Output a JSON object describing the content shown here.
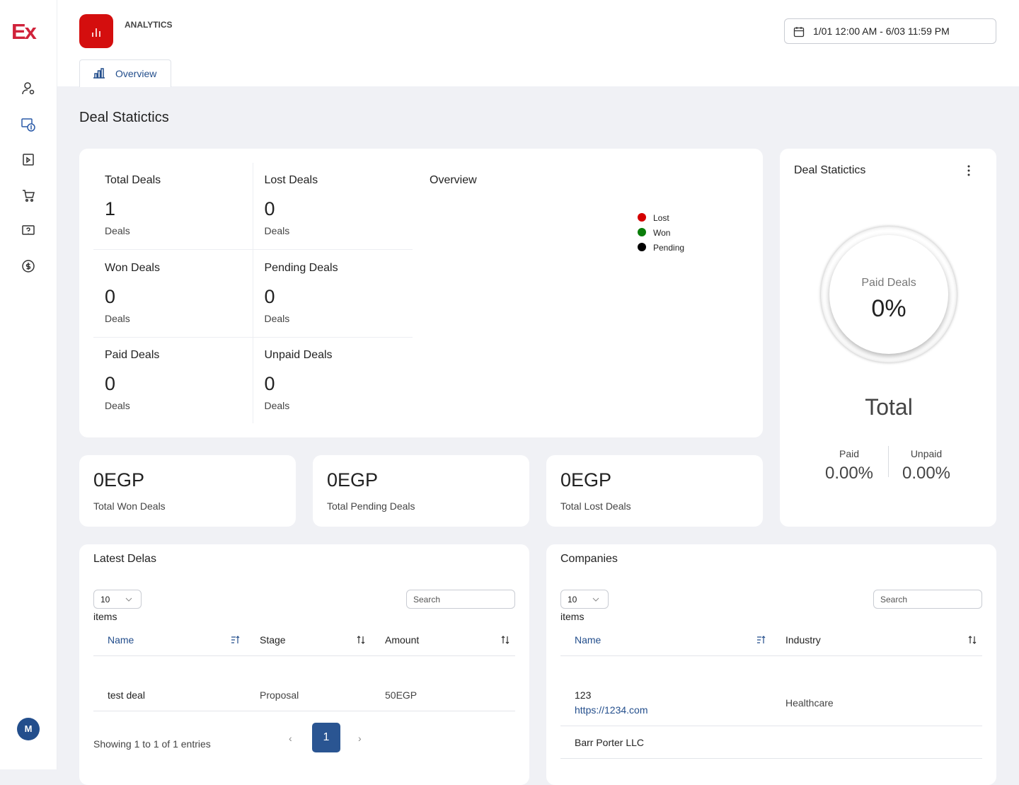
{
  "brand": "Ex",
  "user_initial": "M",
  "header": {
    "section": "ANALYTICS",
    "tab": "Overview",
    "date_range": "1/01 12:00 AM - 6/03 11:59 PM"
  },
  "page_title": "Deal Statictics",
  "stats": [
    {
      "label": "Total Deals",
      "value": 1,
      "unit": "Deals"
    },
    {
      "label": "Lost Deals",
      "value": 0,
      "unit": "Deals"
    },
    {
      "label": "Won Deals",
      "value": 0,
      "unit": "Deals"
    },
    {
      "label": "Pending Deals",
      "value": 0,
      "unit": "Deals"
    },
    {
      "label": "Paid Deals",
      "value": 0,
      "unit": "Deals"
    },
    {
      "label": "Unpaid Deals",
      "value": 0,
      "unit": "Deals"
    }
  ],
  "overview": {
    "title": "Overview",
    "legend": [
      {
        "name": "Lost",
        "color": "#d40000"
      },
      {
        "name": "Won",
        "color": "#0a7d0a"
      },
      {
        "name": "Pending",
        "color": "#000000"
      }
    ]
  },
  "totals": [
    {
      "value": "0EGP",
      "label": "Total Won Deals"
    },
    {
      "value": "0EGP",
      "label": "Total Pending Deals"
    },
    {
      "value": "0EGP",
      "label": "Total Lost Deals"
    }
  ],
  "paid_card": {
    "title": "Deal Statictics",
    "center_label": "Paid Deals",
    "center_value": "0%",
    "total": "Total",
    "paid_label": "Paid",
    "paid_value": "0.00%",
    "unpaid_label": "Unpaid",
    "unpaid_value": "0.00%"
  },
  "latest": {
    "title": "Latest Delas",
    "page_size": "10",
    "items": "items",
    "search": "Search",
    "columns": [
      "Name",
      "Stage",
      "Amount"
    ],
    "rows": [
      [
        "test deal",
        "Proposal",
        "50EGP"
      ]
    ],
    "footer": "Showing 1 to 1 of 1 entries",
    "page": "1"
  },
  "companies": {
    "title": "Companies",
    "page_size": "10",
    "items": "items",
    "search": "Search",
    "columns": [
      "Name",
      "Industry"
    ],
    "rows": [
      {
        "name": "123",
        "url": "https://1234.com",
        "industry": "Healthcare"
      },
      {
        "name": "Barr Porter LLC"
      }
    ]
  }
}
